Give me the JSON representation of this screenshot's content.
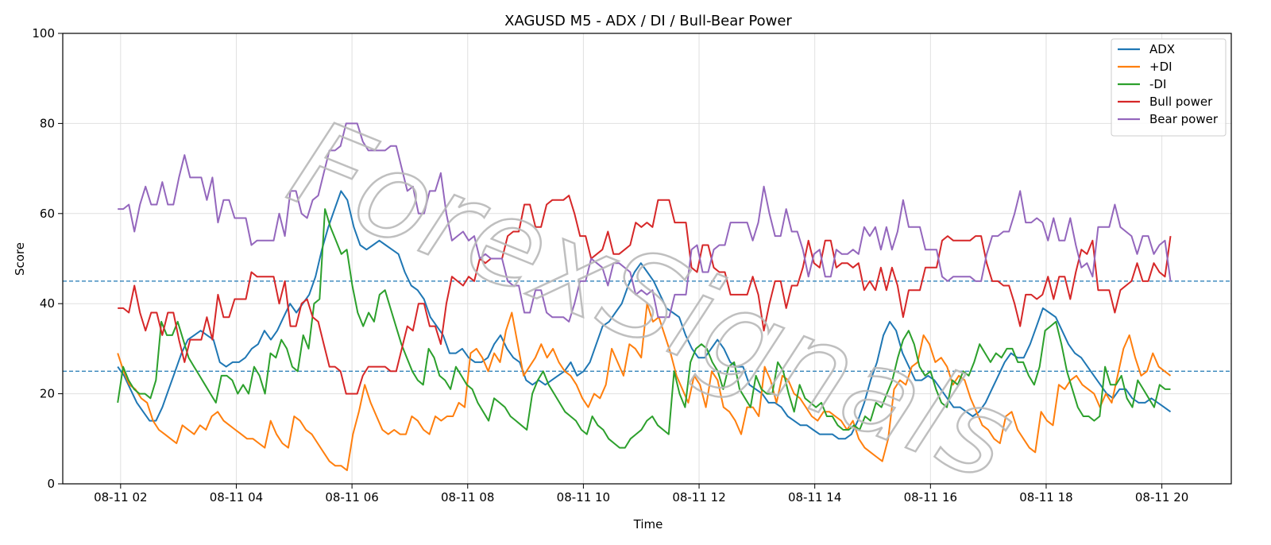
{
  "chart_data": {
    "type": "line",
    "title": "XAGUSD M5 - ADX / DI / Bull-Bear Power",
    "xlabel": "Time",
    "ylabel": "Score",
    "ylim": [
      0,
      100
    ],
    "yticks": [
      0,
      20,
      40,
      60,
      80,
      100
    ],
    "x_start_hour": 1.95,
    "x_end_hour": 20.15,
    "x_range_hours": [
      1.0,
      21.2
    ],
    "xticks": [
      {
        "hour": 2,
        "label": "08-11 02"
      },
      {
        "hour": 4,
        "label": "08-11 04"
      },
      {
        "hour": 6,
        "label": "08-11 06"
      },
      {
        "hour": 8,
        "label": "08-11 08"
      },
      {
        "hour": 10,
        "label": "08-11 10"
      },
      {
        "hour": 12,
        "label": "08-11 12"
      },
      {
        "hour": 14,
        "label": "08-11 14"
      },
      {
        "hour": 16,
        "label": "08-11 16"
      },
      {
        "hour": 18,
        "label": "08-11 18"
      },
      {
        "hour": 20,
        "label": "08-11 20"
      }
    ],
    "hlines": [
      45,
      25
    ],
    "grid": true,
    "legend_position": "top-right",
    "watermark": "ForexSignals",
    "series": [
      {
        "name": "ADX",
        "color": "#1f77b4",
        "values": [
          26,
          24,
          21,
          18,
          16,
          14,
          14,
          17,
          21,
          25,
          29,
          32,
          33,
          34,
          33,
          32,
          27,
          26,
          27,
          27,
          28,
          30,
          31,
          34,
          32,
          34,
          37,
          40,
          38,
          40,
          42,
          46,
          52,
          57,
          61,
          65,
          63,
          57,
          53,
          52,
          53,
          54,
          53,
          52,
          51,
          47,
          44,
          43,
          41,
          37,
          35,
          33,
          29,
          29,
          30,
          28,
          27,
          27,
          28,
          31,
          33,
          30,
          28,
          27,
          23,
          22,
          23,
          22,
          23,
          24,
          25,
          27,
          24,
          25,
          27,
          31,
          35,
          36,
          38,
          40,
          44,
          47,
          49,
          47,
          45,
          42,
          39,
          38,
          37,
          33,
          30,
          28,
          28,
          30,
          32,
          30,
          27,
          26,
          26,
          22,
          21,
          20,
          18,
          18,
          17,
          15,
          14,
          13,
          13,
          12,
          11,
          11,
          11,
          10,
          10,
          11,
          14,
          18,
          23,
          27,
          33,
          36,
          34,
          29,
          26,
          23,
          23,
          24,
          23,
          21,
          19,
          17,
          17,
          16,
          15,
          16,
          18,
          21,
          24,
          27,
          29,
          28,
          28,
          31,
          35,
          39,
          38,
          37,
          34,
          31,
          29,
          28,
          26,
          24,
          22,
          20,
          19,
          21,
          21,
          19,
          18,
          18,
          19,
          18,
          17,
          16
        ]
      },
      {
        "name": "+DI",
        "color": "#ff7f0e",
        "values": [
          29,
          25,
          22,
          21,
          19,
          18,
          14,
          12,
          11,
          10,
          9,
          13,
          12,
          11,
          13,
          12,
          15,
          16,
          14,
          13,
          12,
          11,
          10,
          10,
          9,
          8,
          14,
          11,
          9,
          8,
          15,
          14,
          12,
          11,
          9,
          7,
          5,
          4,
          4,
          3,
          11,
          16,
          22,
          18,
          15,
          12,
          11,
          12,
          11,
          11,
          15,
          14,
          12,
          11,
          15,
          14,
          15,
          15,
          18,
          17,
          29,
          30,
          28,
          25,
          29,
          27,
          34,
          38,
          31,
          24,
          26,
          28,
          31,
          28,
          30,
          27,
          25,
          24,
          22,
          19,
          17,
          20,
          19,
          22,
          30,
          27,
          24,
          31,
          30,
          28,
          40,
          36,
          37,
          33,
          29,
          24,
          21,
          18,
          24,
          22,
          17,
          25,
          23,
          17,
          16,
          14,
          11,
          17,
          17,
          15,
          26,
          23,
          18,
          24,
          23,
          20,
          19,
          17,
          15,
          14,
          16,
          16,
          15,
          14,
          12,
          14,
          10,
          8,
          7,
          6,
          5,
          10,
          21,
          23,
          22,
          26,
          27,
          33,
          31,
          27,
          28,
          26,
          22,
          24,
          23,
          19,
          16,
          13,
          12,
          10,
          9,
          15,
          16,
          12,
          10,
          8,
          7,
          16,
          14,
          13,
          22,
          21,
          23,
          24,
          22,
          21,
          20,
          17,
          20,
          18,
          24,
          30,
          33,
          28,
          24,
          25,
          29,
          26,
          25,
          24
        ]
      },
      {
        "name": "-DI",
        "color": "#2ca02c",
        "values": [
          18,
          26,
          23,
          21,
          20,
          20,
          19,
          23,
          36,
          33,
          33,
          36,
          32,
          28,
          26,
          24,
          22,
          20,
          18,
          24,
          24,
          23,
          20,
          22,
          20,
          26,
          24,
          20,
          29,
          28,
          32,
          30,
          26,
          25,
          33,
          30,
          40,
          41,
          61,
          57,
          54,
          51,
          52,
          44,
          38,
          35,
          38,
          36,
          42,
          43,
          39,
          35,
          31,
          28,
          25,
          23,
          22,
          30,
          28,
          24,
          23,
          21,
          26,
          24,
          22,
          21,
          18,
          16,
          14,
          19,
          18,
          17,
          15,
          14,
          13,
          12,
          20,
          23,
          25,
          22,
          20,
          18,
          16,
          15,
          14,
          12,
          11,
          15,
          13,
          12,
          10,
          9,
          8,
          8,
          10,
          11,
          12,
          14,
          15,
          13,
          12,
          11,
          25,
          20,
          17,
          27,
          30,
          31,
          30,
          27,
          25,
          21,
          26,
          27,
          21,
          19,
          17,
          24,
          21,
          20,
          20,
          27,
          25,
          20,
          16,
          22,
          19,
          18,
          17,
          18,
          15,
          15,
          13,
          12,
          12,
          13,
          12,
          15,
          14,
          18,
          17,
          20,
          23,
          28,
          32,
          34,
          31,
          26,
          24,
          25,
          21,
          18,
          17,
          23,
          22,
          25,
          24,
          27,
          31,
          29,
          27,
          29,
          28,
          30,
          30,
          27,
          27,
          24,
          22,
          26,
          34,
          35,
          36,
          31,
          25,
          21,
          17,
          15,
          15,
          14,
          15,
          26,
          22,
          22,
          24,
          19,
          17,
          23,
          21,
          19,
          17,
          22,
          21,
          21
        ]
      },
      {
        "name": "Bull power",
        "color": "#d62728",
        "values": [
          39,
          39,
          38,
          44,
          38,
          34,
          38,
          38,
          33,
          38,
          38,
          32,
          27,
          32,
          32,
          32,
          37,
          32,
          42,
          37,
          37,
          41,
          41,
          41,
          47,
          46,
          46,
          46,
          46,
          40,
          45,
          35,
          35,
          40,
          41,
          37,
          36,
          31,
          26,
          26,
          25,
          20,
          20,
          20,
          24,
          26,
          26,
          26,
          26,
          25,
          25,
          30,
          35,
          34,
          40,
          40,
          35,
          35,
          31,
          40,
          46,
          45,
          44,
          46,
          45,
          50,
          49,
          50,
          50,
          50,
          55,
          56,
          56,
          62,
          62,
          57,
          57,
          62,
          63,
          63,
          63,
          64,
          60,
          55,
          55,
          50,
          51,
          52,
          56,
          51,
          51,
          52,
          53,
          58,
          57,
          58,
          57,
          63,
          63,
          63,
          58,
          58,
          58,
          48,
          47,
          53,
          53,
          48,
          47,
          47,
          42,
          42,
          42,
          42,
          46,
          42,
          34,
          40,
          45,
          45,
          39,
          44,
          44,
          48,
          54,
          49,
          48,
          54,
          54,
          48,
          49,
          49,
          48,
          49,
          43,
          45,
          43,
          48,
          43,
          48,
          44,
          37,
          43,
          43,
          43,
          48,
          48,
          48,
          54,
          55,
          54,
          54,
          54,
          54,
          55,
          55,
          49,
          45,
          45,
          44,
          44,
          40,
          35,
          42,
          42,
          41,
          42,
          46,
          41,
          46,
          46,
          41,
          47,
          52,
          51,
          54,
          43,
          43,
          43,
          38,
          43,
          44,
          45,
          49,
          45,
          45,
          49,
          47,
          46,
          55
        ]
      },
      {
        "name": "Bear power",
        "color": "#9467bd",
        "values": [
          61,
          61,
          62,
          56,
          62,
          66,
          62,
          62,
          67,
          62,
          62,
          68,
          73,
          68,
          68,
          68,
          63,
          68,
          58,
          63,
          63,
          59,
          59,
          59,
          53,
          54,
          54,
          54,
          54,
          60,
          55,
          65,
          65,
          60,
          59,
          63,
          64,
          69,
          74,
          74,
          75,
          80,
          80,
          80,
          76,
          74,
          74,
          74,
          74,
          75,
          75,
          70,
          65,
          66,
          60,
          60,
          65,
          65,
          69,
          60,
          54,
          55,
          56,
          54,
          55,
          50,
          51,
          50,
          50,
          50,
          45,
          44,
          44,
          38,
          38,
          43,
          43,
          38,
          37,
          37,
          37,
          36,
          40,
          45,
          45,
          50,
          49,
          48,
          44,
          49,
          49,
          48,
          47,
          42,
          43,
          42,
          43,
          37,
          37,
          37,
          42,
          42,
          42,
          52,
          53,
          47,
          47,
          52,
          53,
          53,
          58,
          58,
          58,
          58,
          54,
          58,
          66,
          60,
          55,
          55,
          61,
          56,
          56,
          52,
          46,
          51,
          52,
          46,
          46,
          52,
          51,
          51,
          52,
          51,
          57,
          55,
          57,
          52,
          57,
          52,
          56,
          63,
          57,
          57,
          57,
          52,
          52,
          52,
          46,
          45,
          46,
          46,
          46,
          46,
          45,
          45,
          51,
          55,
          55,
          56,
          56,
          60,
          65,
          58,
          58,
          59,
          58,
          54,
          59,
          54,
          54,
          59,
          53,
          48,
          49,
          46,
          57,
          57,
          57,
          62,
          57,
          56,
          55,
          51,
          55,
          55,
          51,
          53,
          54,
          45
        ]
      }
    ]
  }
}
